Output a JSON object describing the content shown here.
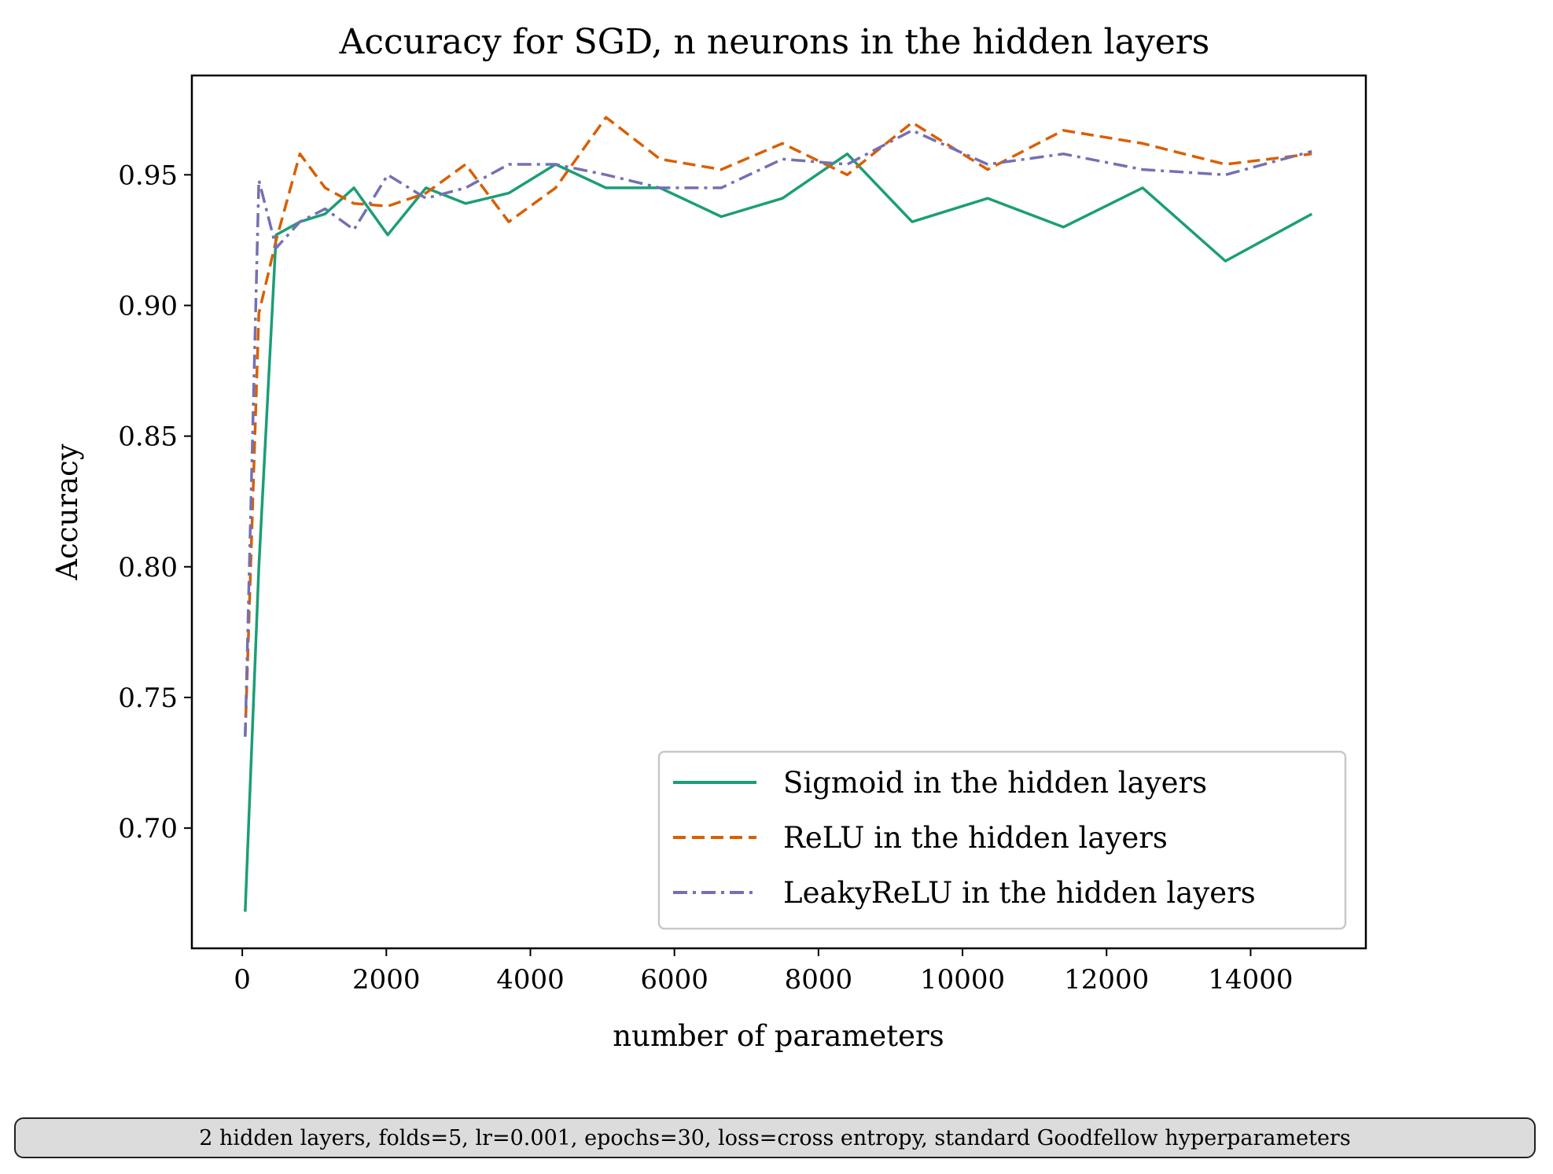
{
  "chart_data": {
    "type": "line",
    "title": "Accuracy for SGD, n neurons in the hidden layers",
    "xlabel": "number of parameters",
    "ylabel": "Accuracy",
    "xlim": [
      -700,
      15600
    ],
    "ylim": [
      0.654,
      0.988
    ],
    "xticks": [
      0,
      2000,
      4000,
      6000,
      8000,
      10000,
      12000,
      14000
    ],
    "yticks": [
      0.7,
      0.75,
      0.8,
      0.85,
      0.9,
      0.95
    ],
    "x": [
      40,
      230,
      470,
      800,
      1150,
      1550,
      2020,
      2550,
      3100,
      3700,
      4350,
      5050,
      5800,
      6650,
      7500,
      8400,
      9300,
      10350,
      11400,
      12500,
      13650,
      14850
    ],
    "series": [
      {
        "name": "Sigmoid in the hidden layers",
        "color": "#1b9e77",
        "dash": "solid",
        "values": [
          0.668,
          0.8,
          0.927,
          0.932,
          0.935,
          0.945,
          0.927,
          0.945,
          0.939,
          0.943,
          0.954,
          0.945,
          0.945,
          0.934,
          0.941,
          0.958,
          0.932,
          0.941,
          0.93,
          0.945,
          0.917,
          0.935
        ]
      },
      {
        "name": "ReLU in the hidden layers",
        "color": "#d95f02",
        "dash": "dashed",
        "values": [
          0.735,
          0.897,
          0.925,
          0.958,
          0.945,
          0.939,
          0.938,
          0.943,
          0.954,
          0.932,
          0.945,
          0.972,
          0.956,
          0.952,
          0.962,
          0.95,
          0.97,
          0.952,
          0.967,
          0.962,
          0.954,
          0.958
        ]
      },
      {
        "name": "LeakyReLU in the hidden layers",
        "color": "#7570b3",
        "dash": "dashdot",
        "values": [
          0.735,
          0.948,
          0.922,
          0.932,
          0.937,
          0.929,
          0.95,
          0.941,
          0.945,
          0.954,
          0.954,
          0.95,
          0.945,
          0.945,
          0.956,
          0.954,
          0.967,
          0.954,
          0.958,
          0.952,
          0.95,
          0.959
        ]
      }
    ],
    "legend_position": "lower-right",
    "grid": false
  },
  "caption": "2 hidden layers, folds=5, lr=0.001, epochs=30, loss=cross entropy, standard Goodfellow hyperparameters"
}
